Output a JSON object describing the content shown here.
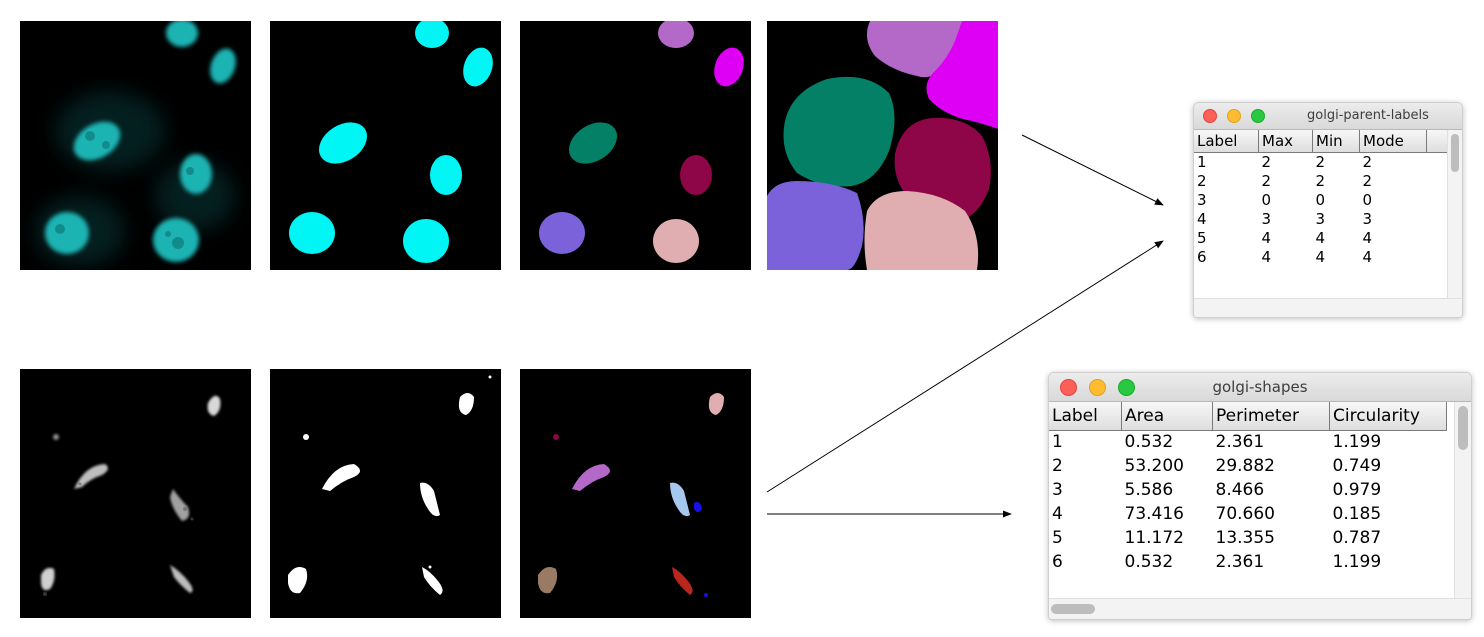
{
  "colors": {
    "nucleus_cyan": "#00f5f5",
    "label_violet": "#b468c8",
    "label_magenta": "#dd00f4",
    "label_teal": "#038065",
    "label_crimson": "#8e0548",
    "label_purple": "#7b62db",
    "label_pink": "#e0aeb0",
    "label_lightblue": "#a6c8ee",
    "label_brown": "#9a7a62",
    "label_red": "#b8261c",
    "label_blue": "#1a10e6"
  },
  "icons": {
    "close": "close-icon",
    "minimize": "minimize-icon",
    "zoom": "zoom-icon",
    "arrow": "arrow-right-icon"
  },
  "windows": {
    "parent_labels": {
      "title": "golgi-parent-labels",
      "headers": [
        "Label",
        "Max",
        "Min",
        "Mode"
      ],
      "rows": [
        [
          "1",
          "2",
          "2",
          "2"
        ],
        [
          "2",
          "2",
          "2",
          "2"
        ],
        [
          "3",
          "0",
          "0",
          "0"
        ],
        [
          "4",
          "3",
          "3",
          "3"
        ],
        [
          "5",
          "4",
          "4",
          "4"
        ],
        [
          "6",
          "4",
          "4",
          "4"
        ]
      ]
    },
    "shapes": {
      "title": "golgi-shapes",
      "headers": [
        "Label",
        "Area",
        "Perimeter",
        "Circularity"
      ],
      "rows": [
        [
          "1",
          "0.532",
          "2.361",
          "1.199"
        ],
        [
          "2",
          "53.200",
          "29.882",
          "0.749"
        ],
        [
          "3",
          "5.586",
          "8.466",
          "0.979"
        ],
        [
          "4",
          "73.416",
          "70.660",
          "0.185"
        ],
        [
          "5",
          "11.172",
          "13.355",
          "0.787"
        ],
        [
          "6",
          "0.532",
          "2.361",
          "1.199"
        ]
      ]
    }
  }
}
